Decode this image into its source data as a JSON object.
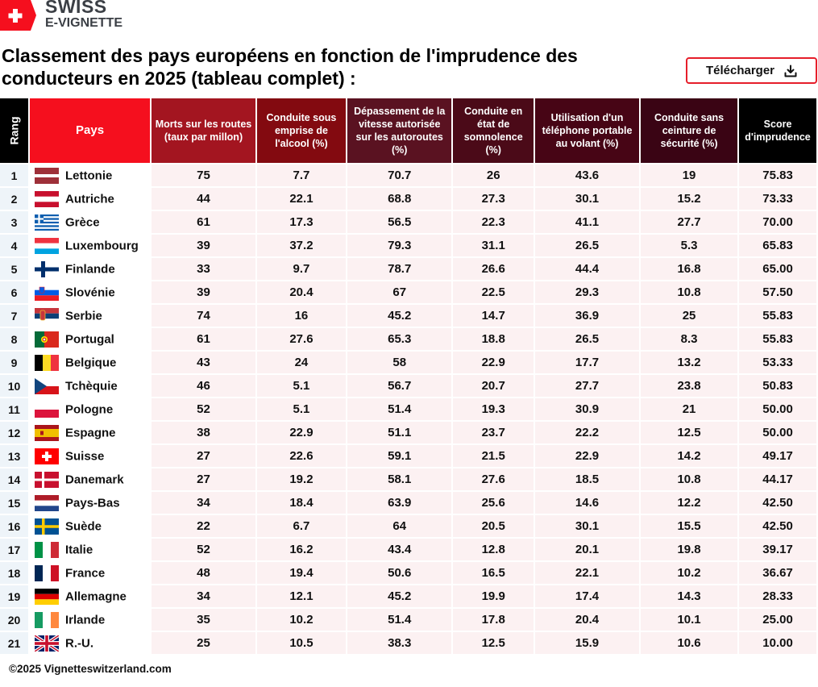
{
  "brand": {
    "line1": "SWISS",
    "line2": "E-VIGNETTE",
    "color": "#f50f1e"
  },
  "title": "Classement des pays européens en fonction de l'imprudence des conducteurs en 2025 (tableau complet) :",
  "download_button": {
    "label": "Télécharger",
    "icon": "download-icon"
  },
  "table": {
    "headers": {
      "rank": "Rang",
      "country": "Pays",
      "deaths": "Morts sur les routes (taux par millon)",
      "alcohol": "Conduite sous emprise de l'alcool (%)",
      "speeding": "Dépassement de la vitesse autorisée sur les autoroutes (%)",
      "drowsy": "Conduite en état de somnolence (%)",
      "phone": "Utilisation d'un téléphone portable au volant (%)",
      "seatbelt": "Conduite sans ceinture de sécurité (%)",
      "score": "Score d'imprudence"
    },
    "rows": [
      {
        "rank": "1",
        "flag": "lv",
        "country": "Lettonie",
        "deaths": "75",
        "alcohol": "7.7",
        "speeding": "70.7",
        "drowsy": "26",
        "phone": "43.6",
        "seatbelt": "19",
        "score": "75.83"
      },
      {
        "rank": "2",
        "flag": "at",
        "country": "Autriche",
        "deaths": "44",
        "alcohol": "22.1",
        "speeding": "68.8",
        "drowsy": "27.3",
        "phone": "30.1",
        "seatbelt": "15.2",
        "score": "73.33"
      },
      {
        "rank": "3",
        "flag": "gr",
        "country": "Grèce",
        "deaths": "61",
        "alcohol": "17.3",
        "speeding": "56.5",
        "drowsy": "22.3",
        "phone": "41.1",
        "seatbelt": "27.7",
        "score": "70.00"
      },
      {
        "rank": "4",
        "flag": "lu",
        "country": "Luxembourg",
        "deaths": "39",
        "alcohol": "37.2",
        "speeding": "79.3",
        "drowsy": "31.1",
        "phone": "26.5",
        "seatbelt": "5.3",
        "score": "65.83"
      },
      {
        "rank": "5",
        "flag": "fi",
        "country": "Finlande",
        "deaths": "33",
        "alcohol": "9.7",
        "speeding": "78.7",
        "drowsy": "26.6",
        "phone": "44.4",
        "seatbelt": "16.8",
        "score": "65.00"
      },
      {
        "rank": "6",
        "flag": "si",
        "country": "Slovénie",
        "deaths": "39",
        "alcohol": "20.4",
        "speeding": "67",
        "drowsy": "22.5",
        "phone": "29.3",
        "seatbelt": "10.8",
        "score": "57.50"
      },
      {
        "rank": "7",
        "flag": "rs",
        "country": "Serbie",
        "deaths": "74",
        "alcohol": "16",
        "speeding": "45.2",
        "drowsy": "14.7",
        "phone": "36.9",
        "seatbelt": "25",
        "score": "55.83"
      },
      {
        "rank": "8",
        "flag": "pt",
        "country": "Portugal",
        "deaths": "61",
        "alcohol": "27.6",
        "speeding": "65.3",
        "drowsy": "18.8",
        "phone": "26.5",
        "seatbelt": "8.3",
        "score": "55.83"
      },
      {
        "rank": "9",
        "flag": "be",
        "country": "Belgique",
        "deaths": "43",
        "alcohol": "24",
        "speeding": "58",
        "drowsy": "22.9",
        "phone": "17.7",
        "seatbelt": "13.2",
        "score": "53.33"
      },
      {
        "rank": "10",
        "flag": "cz",
        "country": "Tchèquie",
        "deaths": "46",
        "alcohol": "5.1",
        "speeding": "56.7",
        "drowsy": "20.7",
        "phone": "27.7",
        "seatbelt": "23.8",
        "score": "50.83"
      },
      {
        "rank": "11",
        "flag": "pl",
        "country": "Pologne",
        "deaths": "52",
        "alcohol": "5.1",
        "speeding": "51.4",
        "drowsy": "19.3",
        "phone": "30.9",
        "seatbelt": "21",
        "score": "50.00"
      },
      {
        "rank": "12",
        "flag": "es",
        "country": "Espagne",
        "deaths": "38",
        "alcohol": "22.9",
        "speeding": "51.1",
        "drowsy": "23.7",
        "phone": "22.2",
        "seatbelt": "12.5",
        "score": "50.00"
      },
      {
        "rank": "13",
        "flag": "ch",
        "country": "Suisse",
        "deaths": "27",
        "alcohol": "22.6",
        "speeding": "59.1",
        "drowsy": "21.5",
        "phone": "22.9",
        "seatbelt": "14.2",
        "score": "49.17"
      },
      {
        "rank": "14",
        "flag": "dk",
        "country": "Danemark",
        "deaths": "27",
        "alcohol": "19.2",
        "speeding": "58.1",
        "drowsy": "27.6",
        "phone": "18.5",
        "seatbelt": "10.8",
        "score": "44.17"
      },
      {
        "rank": "15",
        "flag": "nl",
        "country": "Pays-Bas",
        "deaths": "34",
        "alcohol": "18.4",
        "speeding": "63.9",
        "drowsy": "25.6",
        "phone": "14.6",
        "seatbelt": "12.2",
        "score": "42.50"
      },
      {
        "rank": "16",
        "flag": "se",
        "country": "Suède",
        "deaths": "22",
        "alcohol": "6.7",
        "speeding": "64",
        "drowsy": "20.5",
        "phone": "30.1",
        "seatbelt": "15.5",
        "score": "42.50"
      },
      {
        "rank": "17",
        "flag": "it",
        "country": "Italie",
        "deaths": "52",
        "alcohol": "16.2",
        "speeding": "43.4",
        "drowsy": "12.8",
        "phone": "20.1",
        "seatbelt": "19.8",
        "score": "39.17"
      },
      {
        "rank": "18",
        "flag": "fr",
        "country": "France",
        "deaths": "48",
        "alcohol": "19.4",
        "speeding": "50.6",
        "drowsy": "16.5",
        "phone": "22.1",
        "seatbelt": "10.2",
        "score": "36.67"
      },
      {
        "rank": "19",
        "flag": "de",
        "country": "Allemagne",
        "deaths": "34",
        "alcohol": "12.1",
        "speeding": "45.2",
        "drowsy": "19.9",
        "phone": "17.4",
        "seatbelt": "14.3",
        "score": "28.33"
      },
      {
        "rank": "20",
        "flag": "ie",
        "country": "Irlande",
        "deaths": "35",
        "alcohol": "10.2",
        "speeding": "51.4",
        "drowsy": "17.8",
        "phone": "20.4",
        "seatbelt": "10.1",
        "score": "25.00"
      },
      {
        "rank": "21",
        "flag": "gb",
        "country": "R.-U.",
        "deaths": "25",
        "alcohol": "10.5",
        "speeding": "38.3",
        "drowsy": "12.5",
        "phone": "15.9",
        "seatbelt": "10.6",
        "score": "10.00"
      }
    ]
  },
  "footer": "©2025 Vignetteswitzerland.com",
  "chart_data": {
    "type": "table",
    "title": "Classement des pays européens en fonction de l'imprudence des conducteurs en 2025 (tableau complet) :",
    "columns": [
      "Rang",
      "Pays",
      "Morts sur les routes (taux par millon)",
      "Conduite sous emprise de l'alcool (%)",
      "Dépassement de la vitesse autorisée sur les autoroutes (%)",
      "Conduite en état de somnolence (%)",
      "Utilisation d'un téléphone portable au volant (%)",
      "Conduite sans ceinture de sécurité (%)",
      "Score d'imprudence"
    ],
    "categories": [
      "Lettonie",
      "Autriche",
      "Grèce",
      "Luxembourg",
      "Finlande",
      "Slovénie",
      "Serbie",
      "Portugal",
      "Belgique",
      "Tchèquie",
      "Pologne",
      "Espagne",
      "Suisse",
      "Danemark",
      "Pays-Bas",
      "Suède",
      "Italie",
      "France",
      "Allemagne",
      "Irlande",
      "R.-U."
    ],
    "series": [
      {
        "name": "Morts sur les routes (taux par millon)",
        "values": [
          75,
          44,
          61,
          39,
          33,
          39,
          74,
          61,
          43,
          46,
          52,
          38,
          27,
          27,
          34,
          22,
          52,
          48,
          34,
          35,
          25
        ]
      },
      {
        "name": "Conduite sous emprise de l'alcool (%)",
        "values": [
          7.7,
          22.1,
          17.3,
          37.2,
          9.7,
          20.4,
          16,
          27.6,
          24,
          5.1,
          5.1,
          22.9,
          22.6,
          19.2,
          18.4,
          6.7,
          16.2,
          19.4,
          12.1,
          10.2,
          10.5
        ]
      },
      {
        "name": "Dépassement de la vitesse autorisée sur les autoroutes (%)",
        "values": [
          70.7,
          68.8,
          56.5,
          79.3,
          78.7,
          67,
          45.2,
          65.3,
          58,
          56.7,
          51.4,
          51.1,
          59.1,
          58.1,
          63.9,
          64,
          43.4,
          50.6,
          45.2,
          51.4,
          38.3
        ]
      },
      {
        "name": "Conduite en état de somnolence (%)",
        "values": [
          26,
          27.3,
          22.3,
          31.1,
          26.6,
          22.5,
          14.7,
          18.8,
          22.9,
          20.7,
          19.3,
          23.7,
          21.5,
          27.6,
          25.6,
          20.5,
          12.8,
          16.5,
          19.9,
          17.8,
          12.5
        ]
      },
      {
        "name": "Utilisation d'un téléphone portable au volant (%)",
        "values": [
          43.6,
          30.1,
          41.1,
          26.5,
          44.4,
          29.3,
          36.9,
          26.5,
          17.7,
          27.7,
          30.9,
          22.2,
          22.9,
          18.5,
          14.6,
          30.1,
          20.1,
          22.1,
          17.4,
          20.4,
          15.9
        ]
      },
      {
        "name": "Conduite sans ceinture de sécurité (%)",
        "values": [
          19,
          15.2,
          27.7,
          5.3,
          16.8,
          10.8,
          25,
          8.3,
          13.2,
          23.8,
          21,
          12.5,
          14.2,
          10.8,
          12.2,
          15.5,
          19.8,
          10.2,
          14.3,
          10.1,
          10.6
        ]
      },
      {
        "name": "Score d'imprudence",
        "values": [
          75.83,
          73.33,
          70.0,
          65.83,
          65.0,
          57.5,
          55.83,
          55.83,
          53.33,
          50.83,
          50.0,
          50.0,
          49.17,
          44.17,
          42.5,
          42.5,
          39.17,
          36.67,
          28.33,
          25.0,
          10.0
        ]
      }
    ]
  }
}
